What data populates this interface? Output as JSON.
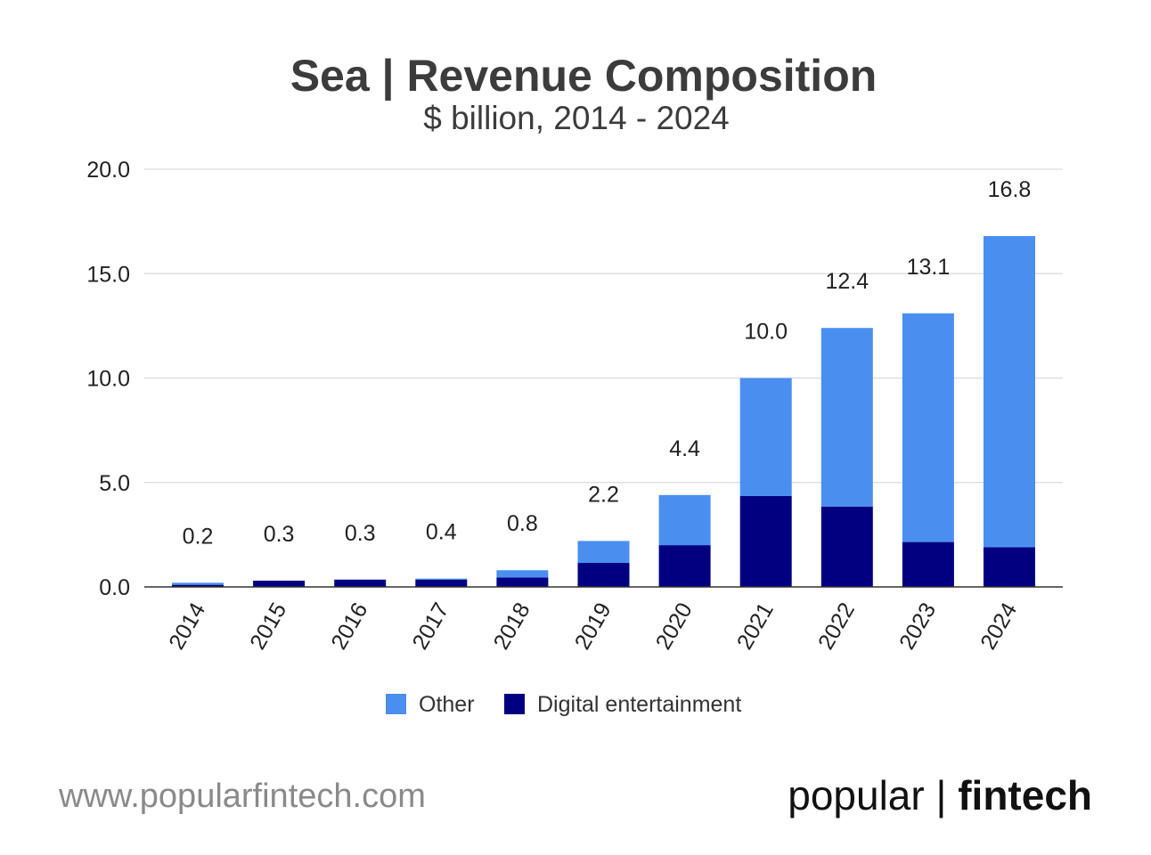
{
  "chart_data": {
    "type": "bar",
    "stacked": true,
    "title": "Sea | Revenue Composition",
    "subtitle": "$ billion, 2014 - 2024",
    "categories": [
      "2014",
      "2015",
      "2016",
      "2017",
      "2018",
      "2019",
      "2020",
      "2021",
      "2022",
      "2023",
      "2024"
    ],
    "series": [
      {
        "name": "Digital entertainment",
        "color": "#020080",
        "values": [
          0.1,
          0.3,
          0.35,
          0.35,
          0.45,
          1.15,
          2.0,
          4.35,
          3.85,
          2.15,
          1.9
        ]
      },
      {
        "name": "Other",
        "color": "#4A8FF0",
        "values": [
          0.1,
          0.0,
          0.0,
          0.05,
          0.35,
          1.05,
          2.4,
          5.65,
          8.55,
          10.95,
          14.9
        ]
      }
    ],
    "totals_labels": [
      "0.2",
      "0.3",
      "0.3",
      "0.4",
      "0.8",
      "2.2",
      "4.4",
      "10.0",
      "12.4",
      "13.1",
      "16.8"
    ],
    "totals": [
      0.2,
      0.3,
      0.35,
      0.4,
      0.8,
      2.2,
      4.4,
      10.0,
      12.4,
      13.1,
      16.8
    ],
    "yticks": [
      "0.0",
      "5.0",
      "10.0",
      "15.0",
      "20.0"
    ],
    "ylim": [
      0,
      20
    ],
    "xlabel": "",
    "ylabel": "",
    "grid": true,
    "legend": {
      "position": "bottom",
      "items": [
        {
          "label": "Other",
          "color": "#4A8FF0"
        },
        {
          "label": "Digital entertainment",
          "color": "#020080"
        }
      ]
    }
  },
  "footer": {
    "url": "www.popularfintech.com",
    "brand_light": "popular | ",
    "brand_bold": "fintech"
  }
}
